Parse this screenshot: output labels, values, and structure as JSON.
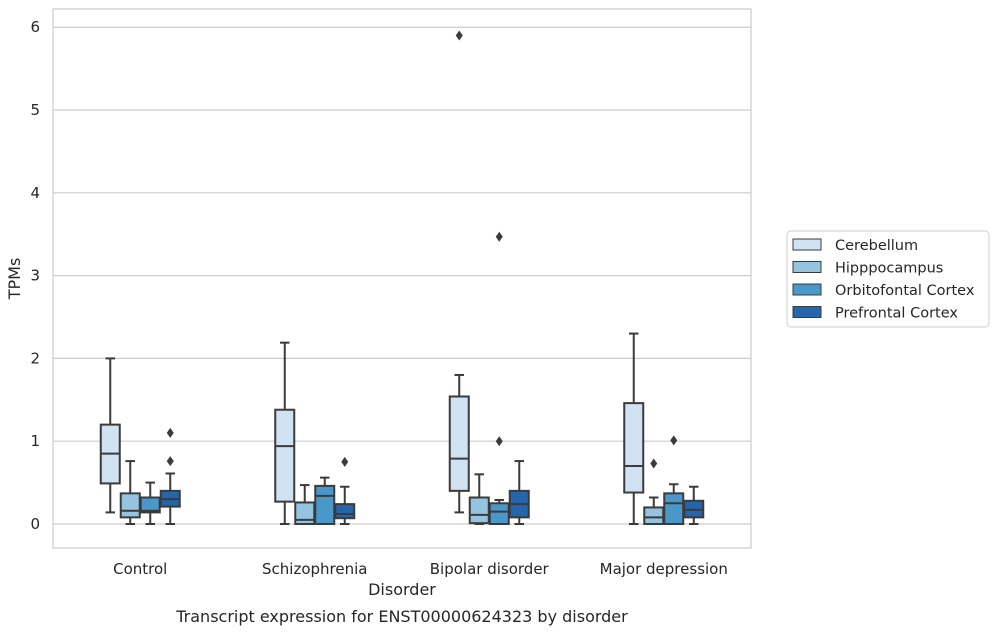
{
  "chart_data": {
    "type": "box",
    "title": "",
    "caption": "Transcript expression for ENST00000624323 by disorder",
    "xlabel": "Disorder",
    "ylabel": "TPMs",
    "ylim": [
      -0.29,
      6.22
    ],
    "yticks": [
      0,
      1,
      2,
      3,
      4,
      5,
      6
    ],
    "grid": "horizontal",
    "legend_position": "right",
    "categories": [
      "Control",
      "Schizophrenia",
      "Bipolar disorder",
      "Major depression"
    ],
    "series": [
      {
        "name": "Cerebellum",
        "color": "#d0e1f2",
        "boxes": [
          {
            "whisker_low": 0.14,
            "q1": 0.49,
            "median": 0.85,
            "q3": 1.2,
            "whisker_high": 2.0,
            "outliers": []
          },
          {
            "whisker_low": 0.0,
            "q1": 0.27,
            "median": 0.94,
            "q3": 1.38,
            "whisker_high": 2.19,
            "outliers": []
          },
          {
            "whisker_low": 0.14,
            "q1": 0.4,
            "median": 0.79,
            "q3": 1.54,
            "whisker_high": 1.8,
            "outliers": [
              5.9
            ]
          },
          {
            "whisker_low": 0.0,
            "q1": 0.38,
            "median": 0.7,
            "q3": 1.46,
            "whisker_high": 2.3,
            "outliers": []
          }
        ]
      },
      {
        "name": "Hipppocampus",
        "color": "#94c4df",
        "boxes": [
          {
            "whisker_low": 0.0,
            "q1": 0.08,
            "median": 0.16,
            "q3": 0.37,
            "whisker_high": 0.76,
            "outliers": []
          },
          {
            "whisker_low": 0.0,
            "q1": 0.0,
            "median": 0.05,
            "q3": 0.26,
            "whisker_high": 0.47,
            "outliers": []
          },
          {
            "whisker_low": 0.0,
            "q1": 0.01,
            "median": 0.11,
            "q3": 0.32,
            "whisker_high": 0.6,
            "outliers": []
          },
          {
            "whisker_low": 0.0,
            "q1": 0.0,
            "median": 0.08,
            "q3": 0.2,
            "whisker_high": 0.32,
            "outliers": [
              0.73
            ]
          }
        ]
      },
      {
        "name": "Orbitofontal Cortex",
        "color": "#4a98c9",
        "boxes": [
          {
            "whisker_low": 0.0,
            "q1": 0.14,
            "median": 0.16,
            "q3": 0.32,
            "whisker_high": 0.5,
            "outliers": []
          },
          {
            "whisker_low": 0.0,
            "q1": 0.0,
            "median": 0.34,
            "q3": 0.46,
            "whisker_high": 0.56,
            "outliers": []
          },
          {
            "whisker_low": 0.0,
            "q1": 0.0,
            "median": 0.15,
            "q3": 0.25,
            "whisker_high": 0.29,
            "outliers": [
              3.47,
              1.0
            ]
          },
          {
            "whisker_low": 0.0,
            "q1": 0.0,
            "median": 0.25,
            "q3": 0.37,
            "whisker_high": 0.48,
            "outliers": [
              1.01
            ]
          }
        ]
      },
      {
        "name": "Prefrontal Cortex",
        "color": "#2465ac",
        "boxes": [
          {
            "whisker_low": 0.0,
            "q1": 0.21,
            "median": 0.3,
            "q3": 0.4,
            "whisker_high": 0.61,
            "outliers": [
              1.1,
              0.76
            ]
          },
          {
            "whisker_low": 0.0,
            "q1": 0.07,
            "median": 0.12,
            "q3": 0.24,
            "whisker_high": 0.45,
            "outliers": [
              0.75
            ]
          },
          {
            "whisker_low": 0.0,
            "q1": 0.08,
            "median": 0.24,
            "q3": 0.4,
            "whisker_high": 0.76,
            "outliers": []
          },
          {
            "whisker_low": 0.0,
            "q1": 0.08,
            "median": 0.17,
            "q3": 0.28,
            "whisker_high": 0.45,
            "outliers": []
          }
        ]
      }
    ]
  }
}
